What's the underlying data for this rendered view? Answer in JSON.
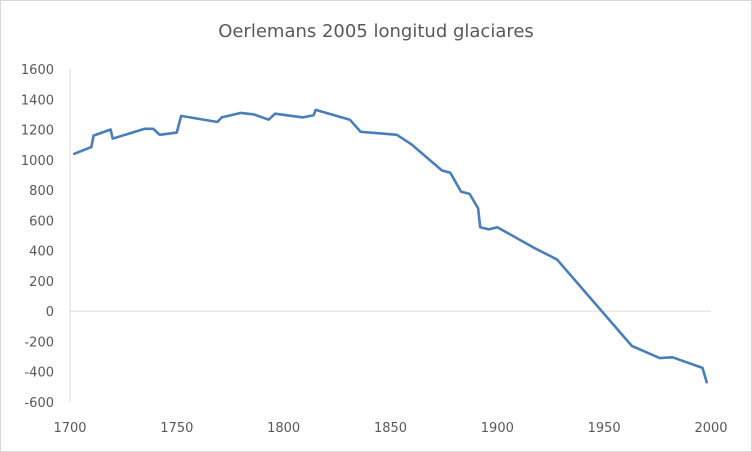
{
  "chart_data": {
    "type": "line",
    "title": "Oerlemans 2005 longitud glaciares",
    "xlabel": "",
    "ylabel": "",
    "xlim": [
      1700,
      2000
    ],
    "ylim": [
      -600,
      1600
    ],
    "x_ticks": [
      1700,
      1750,
      1800,
      1850,
      1900,
      1950,
      2000
    ],
    "y_ticks": [
      1600,
      1400,
      1200,
      1000,
      800,
      600,
      400,
      200,
      0,
      -200,
      -400,
      -600
    ],
    "grid": false,
    "legend": "none",
    "series": [
      {
        "color": "#4a7ebb",
        "points": [
          [
            1702,
            1040
          ],
          [
            1710,
            1085
          ],
          [
            1711,
            1160
          ],
          [
            1719,
            1200
          ],
          [
            1720,
            1140
          ],
          [
            1735,
            1205
          ],
          [
            1739,
            1205
          ],
          [
            1742,
            1165
          ],
          [
            1750,
            1180
          ],
          [
            1752,
            1290
          ],
          [
            1769,
            1250
          ],
          [
            1771,
            1280
          ],
          [
            1780,
            1310
          ],
          [
            1786,
            1300
          ],
          [
            1793,
            1265
          ],
          [
            1796,
            1305
          ],
          [
            1809,
            1280
          ],
          [
            1814,
            1295
          ],
          [
            1815,
            1330
          ],
          [
            1831,
            1265
          ],
          [
            1836,
            1185
          ],
          [
            1853,
            1165
          ],
          [
            1860,
            1100
          ],
          [
            1874,
            930
          ],
          [
            1878,
            915
          ],
          [
            1883,
            790
          ],
          [
            1887,
            775
          ],
          [
            1891,
            680
          ],
          [
            1892,
            555
          ],
          [
            1896,
            540
          ],
          [
            1900,
            555
          ],
          [
            1917,
            420
          ],
          [
            1926,
            355
          ],
          [
            1928,
            340
          ],
          [
            1963,
            -230
          ],
          [
            1976,
            -310
          ],
          [
            1982,
            -305
          ],
          [
            1996,
            -375
          ],
          [
            1998,
            -470
          ]
        ]
      }
    ]
  }
}
